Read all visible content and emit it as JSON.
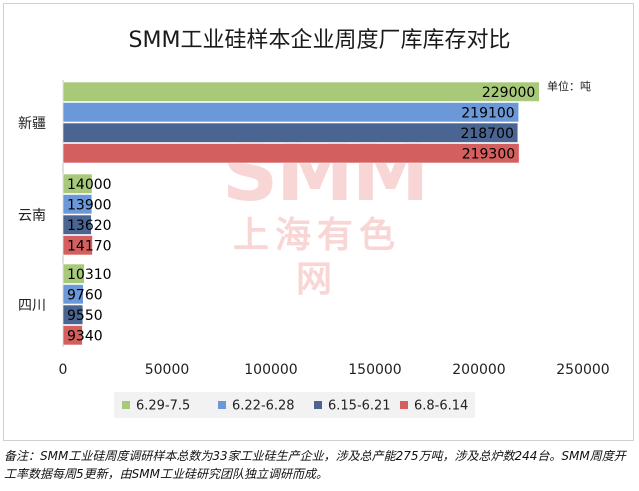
{
  "title": "SMM工业硅样本企业周度厂库库存对比",
  "unit_label": "单位：吨",
  "watermark": {
    "logo": "SMM",
    "text": "上海有色网"
  },
  "footer": "备注：SMM工业硅周度调研样本总数为33家工业硅生产企业，涉及总产能275万吨，涉及总炉数244台。SMM周度开工率数据每周5更新，由SMM工业硅研究团队独立调研而成。",
  "chart_data": {
    "type": "bar",
    "orientation": "horizontal",
    "categories": [
      "新疆",
      "云南",
      "四川"
    ],
    "series": [
      {
        "name": "6.29-7.5",
        "color": "#a8c97a",
        "values": [
          229000,
          14000,
          10310
        ]
      },
      {
        "name": "6.22-6.28",
        "color": "#6a98d8",
        "values": [
          219100,
          13900,
          9760
        ]
      },
      {
        "name": "6.15-6.21",
        "color": "#4a6592",
        "values": [
          218700,
          13620,
          9550
        ]
      },
      {
        "name": "6.8-6.14",
        "color": "#d45f5f",
        "values": [
          219300,
          14170,
          9340
        ]
      }
    ],
    "xlim": [
      0,
      250000
    ],
    "x_ticks": [
      0,
      50000,
      100000,
      150000,
      200000,
      250000
    ],
    "legend_position": "bottom",
    "grid": false
  }
}
